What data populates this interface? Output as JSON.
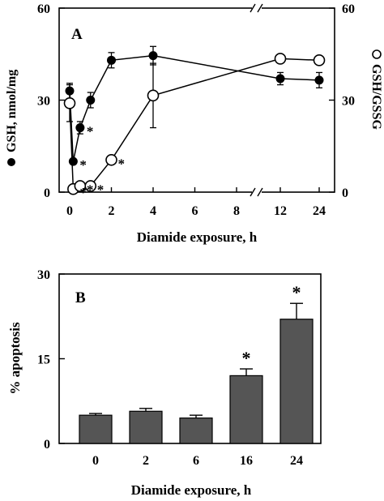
{
  "chart_data": [
    {
      "type": "line",
      "panel_label": "A",
      "xlabel": "Diamide exposure, h",
      "ylabel_left": "GSH, nmol/mg",
      "ylabel_right": "GSH/GSSG",
      "ylim_left": [
        0,
        60
      ],
      "ylim_right": [
        0,
        60
      ],
      "x_ticks": [
        "0",
        "2",
        "4",
        "6",
        "8",
        "12",
        "24"
      ],
      "y_ticks_left": [
        "0",
        "30",
        "60"
      ],
      "y_ticks_right": [
        "0",
        "30",
        "60"
      ],
      "axis_break": "between 8 and 12 h",
      "series": [
        {
          "name": "GSH, nmol/mg",
          "marker": "filled-circle",
          "x": [
            0,
            0.17,
            0.5,
            1,
            2,
            4,
            12,
            24
          ],
          "y": [
            33,
            10,
            21,
            30,
            43,
            44.5,
            37,
            36.5
          ],
          "err": [
            2.5,
            0,
            2,
            2.5,
            2.5,
            3,
            2,
            2.5
          ],
          "significant": [
            false,
            true,
            true,
            false,
            false,
            false,
            false,
            false
          ]
        },
        {
          "name": "GSH/GSSG",
          "marker": "open-circle",
          "x": [
            0,
            0.17,
            0.5,
            1,
            2,
            4,
            12,
            24
          ],
          "y": [
            29,
            1,
            2,
            2,
            10.5,
            31.5,
            43.5,
            43
          ],
          "err": [
            6,
            0,
            0,
            0,
            0,
            10.5,
            0,
            0
          ],
          "significant": [
            false,
            true,
            true,
            true,
            true,
            false,
            false,
            false
          ]
        }
      ]
    },
    {
      "type": "bar",
      "panel_label": "B",
      "xlabel": "Diamide exposure, h",
      "ylabel": "% apoptosis",
      "ylim": [
        0,
        30
      ],
      "y_ticks": [
        "0",
        "15",
        "30"
      ],
      "categories": [
        "0",
        "2",
        "6",
        "16",
        "24"
      ],
      "values": [
        5,
        5.7,
        4.5,
        12,
        22
      ],
      "err": [
        0.3,
        0.5,
        0.5,
        1.2,
        2.8
      ],
      "significant": [
        false,
        false,
        false,
        true,
        true
      ],
      "bar_color": "#555555"
    }
  ],
  "significance_marker": "*"
}
